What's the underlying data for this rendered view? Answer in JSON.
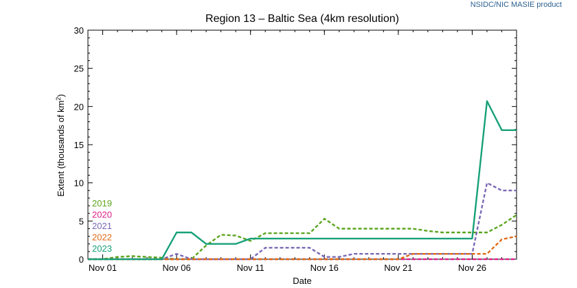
{
  "credit": "NSIDC/NIC MASIE product",
  "chart_data": {
    "type": "line",
    "title": "Region 13 – Baltic Sea (4km resolution)",
    "xlabel": "Date",
    "ylabel_prefix": "Extent (thousands of km",
    "ylabel_sup": "2",
    "ylabel_suffix": ")",
    "xlim": [
      1,
      30
    ],
    "ylim": [
      0,
      30
    ],
    "yticks": [
      0,
      5,
      10,
      15,
      20,
      25,
      30
    ],
    "xticks": [
      {
        "day": 2,
        "label": "Nov 01"
      },
      {
        "day": 7,
        "label": "Nov 06"
      },
      {
        "day": 12,
        "label": "Nov 11"
      },
      {
        "day": 17,
        "label": "Nov 16"
      },
      {
        "day": 22,
        "label": "Nov 21"
      },
      {
        "day": 27,
        "label": "Nov 26"
      }
    ],
    "legend_position": "bottom-left",
    "series": [
      {
        "name": "2019",
        "color": "#5aa51e",
        "dash": true,
        "x": [
          1,
          2,
          3,
          4,
          5,
          6,
          7,
          8,
          9,
          10,
          11,
          12,
          13,
          14,
          15,
          16,
          17,
          18,
          19,
          20,
          21,
          22,
          23,
          24,
          25,
          26,
          27,
          28,
          29,
          30
        ],
        "y": [
          0,
          0,
          0.3,
          0.4,
          0.3,
          0.2,
          0,
          0,
          1.8,
          3.2,
          3.1,
          2.4,
          3.4,
          3.4,
          3.4,
          3.4,
          5.3,
          4.0,
          4.0,
          4.0,
          4.0,
          4.0,
          4.0,
          3.7,
          3.5,
          3.5,
          3.5,
          3.5,
          4.5,
          5.8
        ]
      },
      {
        "name": "2020",
        "color": "#e0208c",
        "dash": true,
        "x": [
          1,
          30
        ],
        "y": [
          0,
          0
        ]
      },
      {
        "name": "2021",
        "color": "#7a68b5",
        "dash": true,
        "x": [
          1,
          2,
          3,
          4,
          5,
          6,
          7,
          8,
          9,
          10,
          11,
          12,
          13,
          14,
          15,
          16,
          17,
          18,
          19,
          20,
          21,
          22,
          23,
          24,
          25,
          26,
          27,
          28,
          29,
          30
        ],
        "y": [
          0,
          0,
          0,
          0,
          0,
          0,
          0.7,
          0,
          0,
          0,
          0,
          0,
          1.5,
          1.5,
          1.5,
          1.5,
          0.3,
          0.3,
          0.7,
          0.7,
          0.7,
          0.7,
          0.7,
          0.7,
          0.7,
          0.7,
          0.7,
          10.0,
          9.0,
          9.0
        ]
      },
      {
        "name": "2022",
        "color": "#e06a14",
        "dash": true,
        "x": [
          1,
          2,
          3,
          4,
          5,
          6,
          7,
          8,
          9,
          10,
          11,
          12,
          13,
          14,
          15,
          16,
          17,
          18,
          19,
          20,
          21,
          22,
          23,
          24,
          25,
          26,
          27,
          28,
          29,
          30
        ],
        "y": [
          0,
          0,
          0,
          0,
          0,
          0,
          0,
          0,
          0,
          0,
          0,
          0,
          0,
          0,
          0,
          0,
          0,
          0,
          0,
          0,
          0,
          0,
          0.7,
          0.7,
          0.7,
          0.7,
          0.7,
          0.7,
          2.6,
          3.0
        ]
      },
      {
        "name": "2023",
        "color": "#16a077",
        "dash": false,
        "x": [
          1,
          2,
          3,
          4,
          5,
          6,
          7,
          8,
          9,
          10,
          11,
          12,
          13,
          14,
          15,
          16,
          17,
          18,
          19,
          20,
          21,
          22,
          23,
          24,
          25,
          26,
          27,
          28,
          29,
          30
        ],
        "y": [
          0,
          0,
          0,
          0,
          0,
          0,
          3.5,
          3.5,
          2.0,
          2.0,
          2.0,
          2.7,
          2.7,
          2.7,
          2.7,
          2.7,
          2.7,
          2.7,
          2.7,
          2.7,
          2.7,
          2.7,
          2.7,
          2.7,
          2.7,
          2.7,
          2.7,
          20.7,
          16.9,
          16.9
        ]
      }
    ]
  }
}
